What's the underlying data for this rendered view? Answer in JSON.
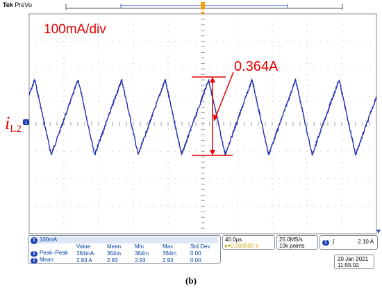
{
  "header": {
    "brand": "Tek",
    "mode": "PreVu"
  },
  "annotations": {
    "scale": "100mA/div",
    "peak_to_peak": "0.364A",
    "signal_main": "i",
    "signal_sub": "L2"
  },
  "colors": {
    "trace": "#1f2fb0",
    "annotation": "#e60000",
    "grid": "#8a8a8a",
    "trigger_marker": "#f0a000"
  },
  "channel": {
    "badge": "1",
    "scale": "100mA"
  },
  "measurements": {
    "headers": [
      "Value",
      "Mean",
      "Min",
      "Max",
      "Std Dev"
    ],
    "rows": [
      {
        "badge": "1",
        "name": "Peak–Peak",
        "values": [
          "364mA",
          "364m",
          "364m",
          "364m",
          "0.00"
        ]
      },
      {
        "badge": "1",
        "name": "Mean",
        "values": [
          "2.93 A",
          "2.93",
          "2.93",
          "2.93",
          "0.00"
        ]
      }
    ]
  },
  "timebase": {
    "per_div": "40.0µs",
    "delay": "▸▾0.000000 s"
  },
  "acquisition": {
    "rate": "25.0MS/s",
    "points": "10k points"
  },
  "trigger": {
    "badge": "1",
    "slope": "ʃ",
    "level": "2.10 A"
  },
  "datetime": {
    "date": "20 Jan  2021",
    "time": "11:55:02"
  },
  "caption": "(b)"
}
